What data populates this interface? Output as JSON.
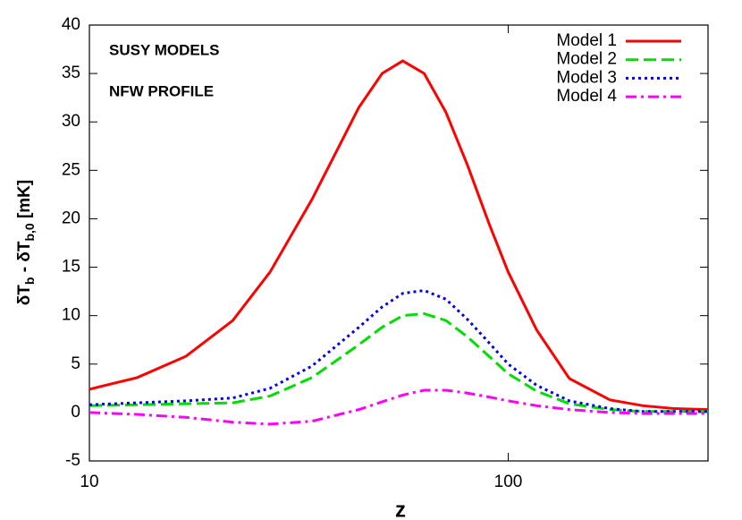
{
  "chart_data": {
    "type": "line",
    "x_label": "z",
    "y_label_parts": [
      "δT",
      "b",
      " - δT",
      "b,0",
      " [mK]"
    ],
    "annotations": [
      "SUSY MODELS",
      "NFW PROFILE"
    ],
    "x_scale": "log",
    "xlim": [
      10,
      300
    ],
    "xticks": [
      10,
      100
    ],
    "ylim": [
      -5,
      40
    ],
    "yticks": [
      -5,
      0,
      5,
      10,
      15,
      20,
      25,
      30,
      35,
      40
    ],
    "legend": "top-right",
    "x": [
      10,
      13,
      17,
      22,
      27,
      34,
      44,
      50,
      56,
      63,
      71,
      80,
      90,
      100,
      117,
      140,
      175,
      210,
      250,
      300
    ],
    "series": [
      {
        "name": "Model 1",
        "color": "#ff0000",
        "dash": "solid",
        "values": [
          2.4,
          3.6,
          5.8,
          9.5,
          14.5,
          22,
          31.5,
          35,
          36.3,
          35,
          31,
          25.5,
          19.5,
          14.5,
          8.5,
          3.5,
          1.3,
          0.7,
          0.4,
          0.3
        ]
      },
      {
        "name": "Model 2",
        "color": "#00dd00",
        "dash": "dashed",
        "values": [
          0.7,
          0.8,
          0.9,
          1.0,
          1.7,
          3.6,
          7.0,
          8.8,
          10,
          10.2,
          9.5,
          7.8,
          5.8,
          4.0,
          2.2,
          0.9,
          0.3,
          0.1,
          0.1,
          0.1
        ]
      },
      {
        "name": "Model 3",
        "color": "#0000ee",
        "dash": "dotted",
        "values": [
          0.8,
          1.0,
          1.2,
          1.5,
          2.5,
          4.8,
          8.8,
          10.9,
          12.3,
          12.6,
          11.7,
          9.6,
          7.2,
          5.0,
          2.8,
          1.2,
          0.4,
          0.1,
          0.1,
          0.1
        ]
      },
      {
        "name": "Model 4",
        "color": "#ff00ff",
        "dash": "dash-dot",
        "values": [
          0,
          -0.2,
          -0.5,
          -1.0,
          -1.2,
          -0.9,
          0.3,
          1.1,
          1.8,
          2.3,
          2.3,
          2.0,
          1.6,
          1.2,
          0.7,
          0.3,
          0,
          -0.1,
          -0.1,
          -0.1
        ]
      }
    ]
  }
}
